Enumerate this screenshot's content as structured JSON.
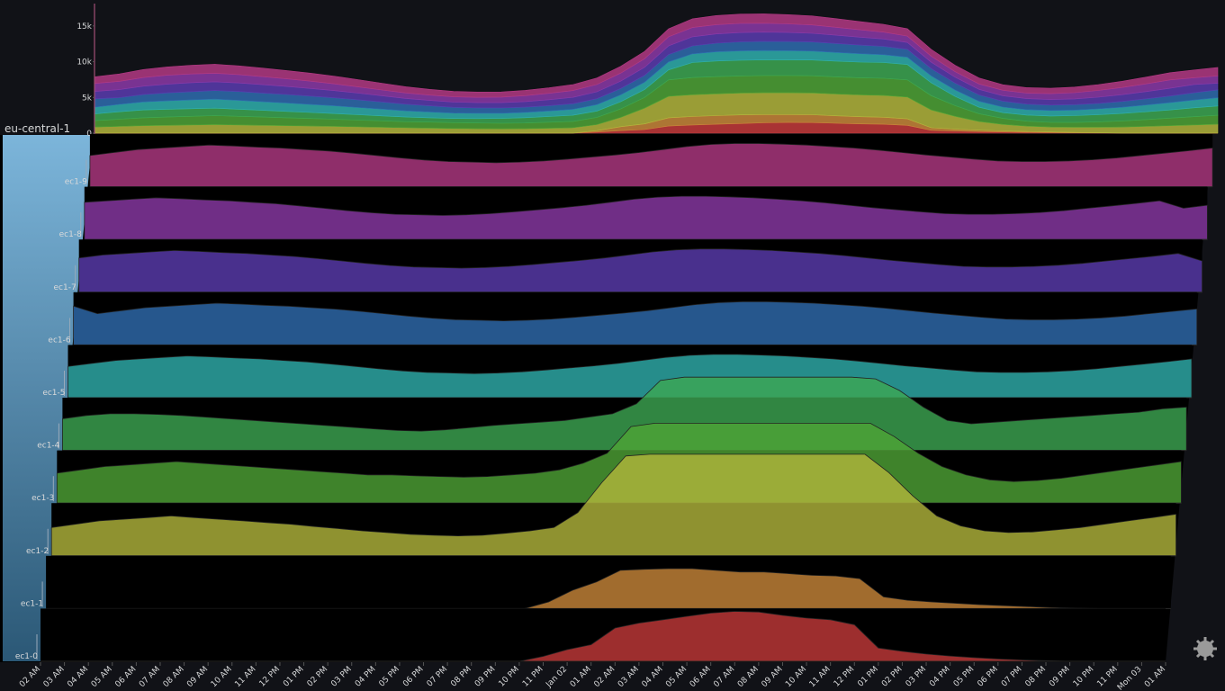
{
  "chart_data": {
    "type": "ridgeline",
    "group": "eu-central-1",
    "categories": [
      "02 AM",
      "03 AM",
      "04 AM",
      "05 AM",
      "06 AM",
      "07 AM",
      "08 AM",
      "09 AM",
      "10 AM",
      "11 AM",
      "12 PM",
      "01 PM",
      "02 PM",
      "03 PM",
      "04 PM",
      "05 PM",
      "06 PM",
      "07 PM",
      "08 PM",
      "09 PM",
      "10 PM",
      "11 PM",
      "Jan 02",
      "01 AM",
      "02 AM",
      "03 AM",
      "04 AM",
      "05 AM",
      "06 AM",
      "07 AM",
      "08 AM",
      "09 AM",
      "10 AM",
      "11 AM",
      "12 PM",
      "01 PM",
      "02 PM",
      "03 PM",
      "04 PM",
      "05 PM",
      "06 PM",
      "07 PM",
      "08 PM",
      "09 PM",
      "10 PM",
      "11 PM",
      "Mon 03",
      "01 AM"
    ],
    "ylim": [
      0,
      18000
    ],
    "yticks": [
      0,
      {
        "value": 5000,
        "label": "5k"
      },
      {
        "value": 10000,
        "label": "10k"
      },
      {
        "value": 15000,
        "label": "15k"
      }
    ],
    "series": [
      {
        "name": "ec1-0",
        "color": "#c43a3a",
        "values": [
          0,
          0,
          0,
          0,
          0,
          0,
          0,
          0,
          0,
          0,
          0,
          0,
          0,
          0,
          0,
          0,
          0,
          0,
          0,
          0,
          0,
          150,
          350,
          500,
          1000,
          1150,
          1250,
          1350,
          1450,
          1500,
          1480,
          1380,
          1300,
          1250,
          1100,
          400,
          300,
          220,
          160,
          110,
          70,
          40,
          20,
          0,
          0,
          0,
          0,
          0
        ]
      },
      {
        "name": "ec1-1",
        "color": "#c9873a",
        "values": [
          0,
          0,
          0,
          0,
          0,
          0,
          0,
          0,
          0,
          0,
          0,
          0,
          0,
          0,
          0,
          0,
          0,
          0,
          0,
          0,
          0,
          200,
          550,
          800,
          1150,
          1180,
          1200,
          1200,
          1150,
          1100,
          1100,
          1050,
          1000,
          980,
          900,
          350,
          250,
          200,
          160,
          120,
          90,
          60,
          30,
          10,
          0,
          0,
          0,
          0
        ]
      },
      {
        "name": "ec1-2",
        "color": "#b3b63c",
        "values": [
          850,
          950,
          1050,
          1100,
          1150,
          1200,
          1150,
          1100,
          1050,
          1000,
          950,
          880,
          820,
          750,
          700,
          650,
          620,
          600,
          620,
          680,
          750,
          850,
          1300,
          2200,
          3000,
          3050,
          3050,
          3050,
          3050,
          3050,
          3050,
          3050,
          3050,
          3050,
          3050,
          2500,
          1800,
          1200,
          900,
          750,
          700,
          720,
          780,
          850,
          950,
          1050,
          1150,
          1250
        ]
      },
      {
        "name": "ec1-3",
        "color": "#4fa436",
        "values": [
          900,
          1000,
          1100,
          1150,
          1200,
          1250,
          1200,
          1150,
          1100,
          1050,
          1000,
          950,
          900,
          850,
          850,
          820,
          800,
          780,
          800,
          850,
          900,
          1000,
          1200,
          1500,
          2300,
          2400,
          2400,
          2400,
          2400,
          2400,
          2400,
          2400,
          2400,
          2400,
          2400,
          2000,
          1500,
          1100,
          850,
          700,
          650,
          680,
          750,
          850,
          950,
          1050,
          1150,
          1250
        ]
      },
      {
        "name": "ec1-4",
        "color": "#3da852",
        "values": [
          950,
          1050,
          1100,
          1100,
          1080,
          1050,
          1000,
          950,
          900,
          850,
          800,
          750,
          700,
          650,
          600,
          580,
          620,
          680,
          750,
          800,
          850,
          900,
          1000,
          1100,
          1400,
          2100,
          2200,
          2200,
          2200,
          2200,
          2200,
          2200,
          2200,
          2200,
          2150,
          1800,
          1300,
          900,
          800,
          850,
          900,
          950,
          1000,
          1050,
          1100,
          1150,
          1250,
          1300
        ]
      },
      {
        "name": "ec1-5",
        "color": "#2fb0ae",
        "values": [
          940,
          1030,
          1120,
          1165,
          1210,
          1255,
          1228,
          1192,
          1165,
          1120,
          1075,
          1012,
          940,
          868,
          805,
          760,
          742,
          724,
          742,
          778,
          832,
          895,
          958,
          1030,
          1120,
          1210,
          1273,
          1300,
          1300,
          1282,
          1255,
          1210,
          1165,
          1102,
          1030,
          958,
          895,
          832,
          778,
          760,
          760,
          778,
          814,
          868,
          940,
          1012,
          1084,
          1165
        ]
      },
      {
        "name": "ec1-6",
        "color": "#2f6db0",
        "values": [
          1165,
          940,
          1030,
          1120,
          1165,
          1210,
          1255,
          1228,
          1192,
          1165,
          1120,
          1075,
          1012,
          940,
          868,
          805,
          760,
          742,
          724,
          742,
          778,
          832,
          895,
          958,
          1030,
          1120,
          1210,
          1273,
          1300,
          1300,
          1282,
          1255,
          1210,
          1165,
          1102,
          1030,
          958,
          895,
          832,
          778,
          760,
          760,
          778,
          814,
          868,
          940,
          1012,
          1084
        ]
      },
      {
        "name": "ec1-7",
        "color": "#5b3cb0",
        "values": [
          1030,
          1120,
          1165,
          1210,
          1255,
          1228,
          1192,
          1165,
          1120,
          1075,
          1012,
          940,
          868,
          805,
          760,
          742,
          724,
          742,
          778,
          832,
          895,
          958,
          1030,
          1120,
          1210,
          1273,
          1300,
          1300,
          1282,
          1255,
          1210,
          1165,
          1102,
          1030,
          958,
          895,
          832,
          778,
          760,
          760,
          778,
          814,
          868,
          940,
          1012,
          1084,
          1165,
          940
        ]
      },
      {
        "name": "ec1-8",
        "color": "#8c3aa8",
        "values": [
          1120,
          1165,
          1210,
          1255,
          1228,
          1192,
          1165,
          1120,
          1075,
          1012,
          940,
          868,
          805,
          760,
          742,
          724,
          742,
          778,
          832,
          895,
          958,
          1030,
          1120,
          1210,
          1273,
          1300,
          1300,
          1282,
          1255,
          1210,
          1165,
          1102,
          1030,
          958,
          895,
          832,
          778,
          760,
          760,
          778,
          814,
          868,
          940,
          1012,
          1084,
          1165,
          940,
          1030
        ]
      },
      {
        "name": "ec1-9",
        "color": "#b33a84",
        "values": [
          940,
          1030,
          1120,
          1165,
          1210,
          1255,
          1228,
          1192,
          1165,
          1120,
          1075,
          1012,
          940,
          868,
          805,
          760,
          742,
          724,
          742,
          778,
          832,
          895,
          958,
          1030,
          1120,
          1210,
          1273,
          1300,
          1300,
          1282,
          1255,
          1210,
          1165,
          1102,
          1030,
          958,
          895,
          832,
          778,
          760,
          760,
          778,
          814,
          868,
          940,
          1012,
          1084,
          1165
        ]
      }
    ]
  }
}
